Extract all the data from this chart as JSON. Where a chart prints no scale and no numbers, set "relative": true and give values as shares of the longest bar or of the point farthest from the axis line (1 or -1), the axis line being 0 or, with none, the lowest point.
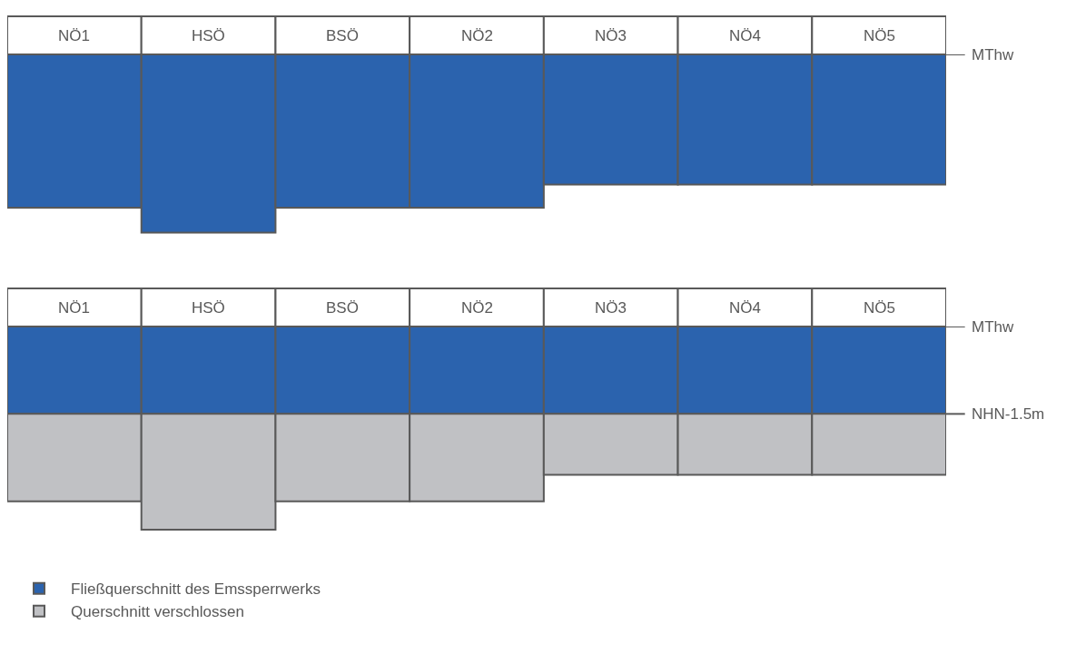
{
  "chart_data": [
    {
      "type": "bar",
      "relative": true,
      "categories": [
        "NÖ1",
        "HSÖ",
        "BSÖ",
        "NÖ2",
        "NÖ3",
        "NÖ4",
        "NÖ5"
      ],
      "series": [
        {
          "color": "#2b63ae",
          "values": [
            -0.86,
            -1,
            -0.86,
            -0.86,
            -0.73,
            -0.73,
            -0.73
          ]
        }
      ],
      "ref_lines": [
        {
          "axis": "y",
          "value": 0,
          "label": "MThw"
        }
      ],
      "legend": false
    },
    {
      "type": "bar",
      "relative": true,
      "stacked": true,
      "categories": [
        "NÖ1",
        "HSÖ",
        "BSÖ",
        "NÖ2",
        "NÖ3",
        "NÖ4",
        "NÖ5"
      ],
      "series": [
        {
          "name": "Fließquerschnitt des Emssperrwerks",
          "color": "#2b63ae",
          "values": [
            -0.43,
            -0.43,
            -0.43,
            -0.43,
            -0.43,
            -0.43,
            -0.43
          ]
        },
        {
          "name": "Querschnitt verschlossen",
          "color": "#c0c1c4",
          "values": [
            -0.43,
            -0.57,
            -0.43,
            -0.43,
            -0.3,
            -0.3,
            -0.3
          ]
        }
      ],
      "ref_lines": [
        {
          "axis": "y",
          "value": 0,
          "label": "MThw"
        },
        {
          "axis": "y",
          "value": -0.43,
          "label": "NHN-1.5m"
        }
      ],
      "legend": "bottom"
    }
  ]
}
